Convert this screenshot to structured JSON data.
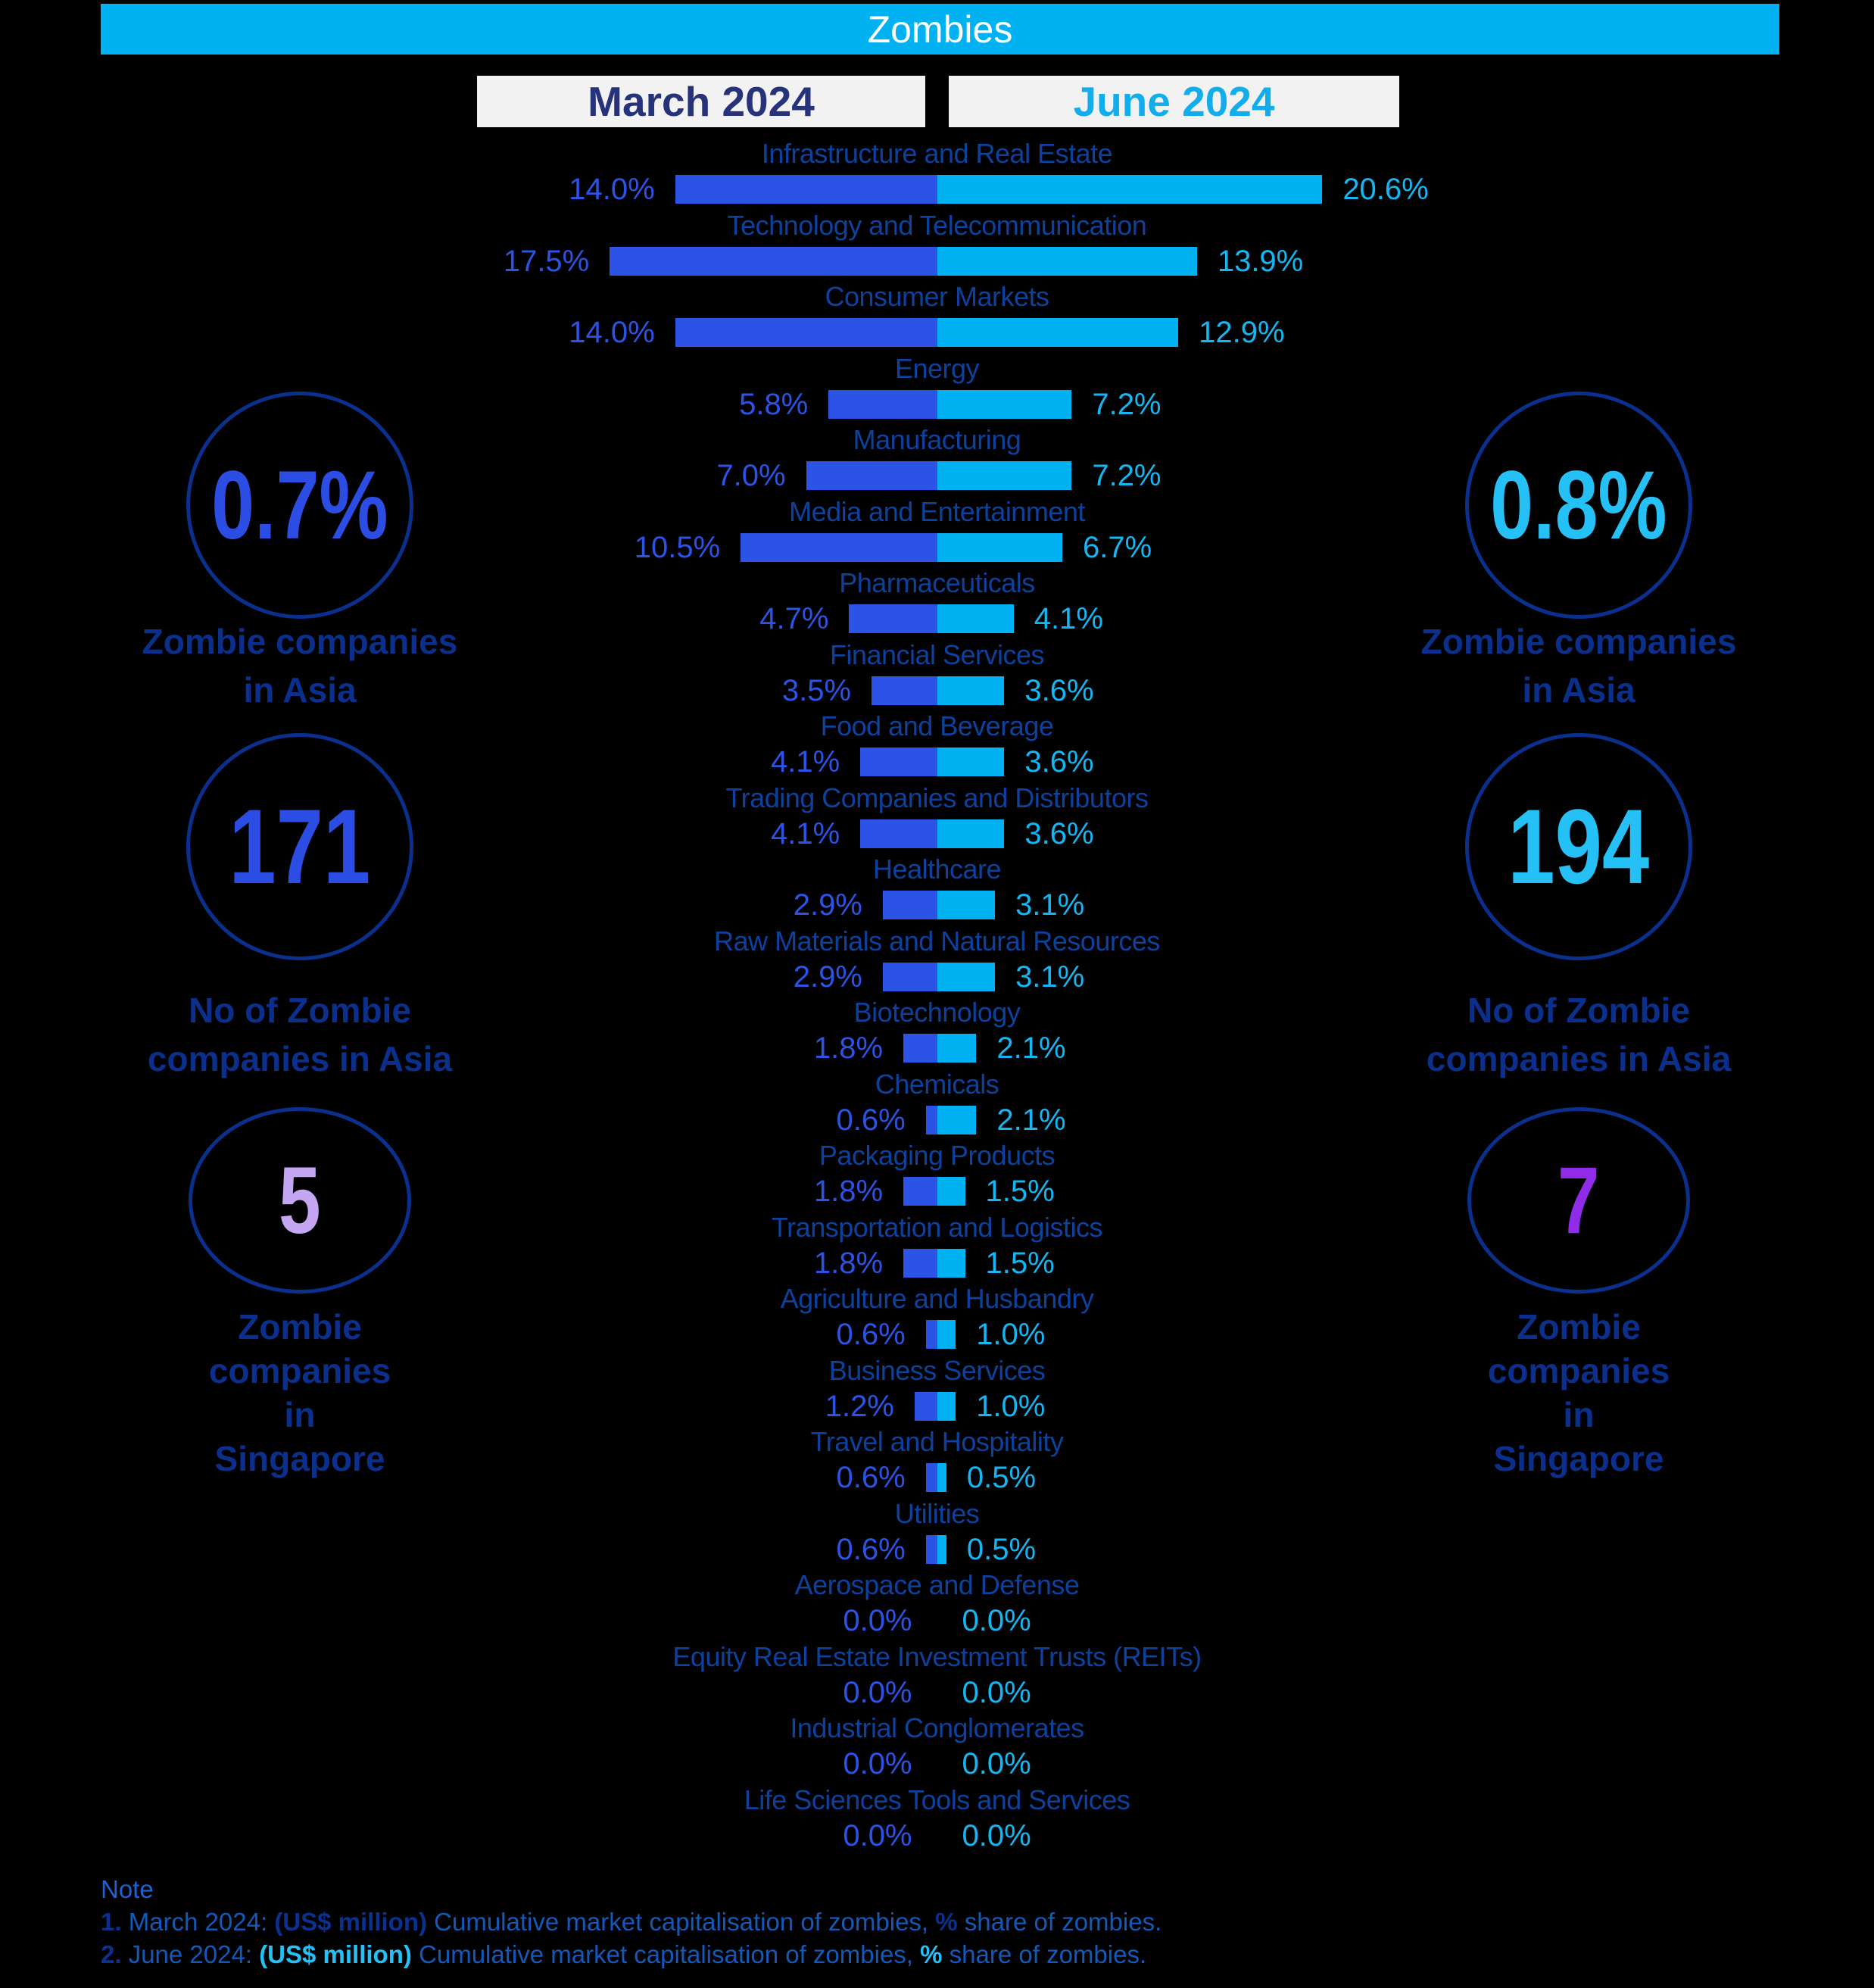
{
  "banner": {
    "title": "Zombies"
  },
  "legend": {
    "march": "March 2024",
    "june": "June 2024"
  },
  "colors": {
    "banner": "#00B2F1",
    "march_bar": "#2B53E6",
    "june_bar": "#00B2F1",
    "category_label": "#0D419E",
    "caption_navy": "#0A2F8C",
    "num_blue": "#2C4DE3",
    "num_cyan": "#25C1F6",
    "num_lavender": "#C4A6F3",
    "num_purple": "#8F2BE9",
    "note_heading": "#1E62D2",
    "note_blue": "#1459B8",
    "note_navy": "#0B3190",
    "note_cyan": "#25C1F6"
  },
  "chart_data": {
    "type": "bar",
    "layout": "butterfly",
    "unit": "%",
    "legend_entries": [
      "March 2024",
      "June 2024"
    ],
    "categories": [
      "Infrastructure and Real Estate",
      "Technology and Telecommunication",
      "Consumer Markets",
      "Energy",
      "Manufacturing",
      "Media and Entertainment",
      "Pharmaceuticals",
      "Financial Services",
      "Food and Beverage",
      "Trading Companies and Distributors",
      "Healthcare",
      "Raw Materials and Natural Resources",
      "Biotechnology",
      "Chemicals",
      "Packaging Products",
      "Transportation and Logistics",
      "Agriculture and Husbandry",
      "Business Services",
      "Travel and Hospitality",
      "Utilities",
      "Aerospace and Defense",
      "Equity Real Estate Investment Trusts (REITs)",
      "Industrial Conglomerates",
      "Life Sciences Tools and Services"
    ],
    "series": [
      {
        "name": "March 2024",
        "values": [
          14.0,
          17.5,
          14.0,
          5.8,
          7.0,
          10.5,
          4.7,
          3.5,
          4.1,
          4.1,
          2.9,
          2.9,
          1.8,
          0.6,
          1.8,
          1.8,
          0.6,
          1.2,
          0.6,
          0.6,
          0.0,
          0.0,
          0.0,
          0.0
        ]
      },
      {
        "name": "June 2024",
        "values": [
          20.6,
          13.9,
          12.9,
          7.2,
          7.2,
          6.7,
          4.1,
          3.6,
          3.6,
          3.6,
          3.1,
          3.1,
          2.1,
          2.1,
          1.5,
          1.5,
          1.0,
          1.0,
          0.5,
          0.5,
          0.0,
          0.0,
          0.0,
          0.0
        ]
      }
    ],
    "value_label_format": "0.0%"
  },
  "stats": {
    "left": [
      {
        "value": "0.7%",
        "caption": "Zombie companies\nin Asia"
      },
      {
        "value": "171",
        "caption": "No of Zombie\ncompanies in Asia"
      },
      {
        "value": "5",
        "caption": "Zombie\ncompanies\nin\nSingapore"
      }
    ],
    "right": [
      {
        "value": "0.8%",
        "caption": "Zombie companies\nin Asia"
      },
      {
        "value": "194",
        "caption": "No of Zombie\ncompanies in Asia"
      },
      {
        "value": "7",
        "caption": "Zombie\ncompanies\nin\nSingapore"
      }
    ]
  },
  "note": {
    "title": "Note",
    "lines": [
      [
        {
          "t": "1. ",
          "b": true,
          "c": "note_navy"
        },
        {
          "t": "March 2024: ",
          "c": "note_blue"
        },
        {
          "t": "(US$ million) ",
          "b": true,
          "c": "note_navy"
        },
        {
          "t": "Cumulative market capitalisation of zombies, ",
          "c": "note_blue"
        },
        {
          "t": "%",
          "b": true,
          "c": "note_navy"
        },
        {
          "t": " share of zombies.",
          "c": "note_blue"
        }
      ],
      [
        {
          "t": "2. ",
          "b": true,
          "c": "note_navy"
        },
        {
          "t": "June 2024: ",
          "c": "note_blue"
        },
        {
          "t": "(US$ million) ",
          "b": true,
          "c": "note_cyan"
        },
        {
          "t": "Cumulative market capitalisation of zombies, ",
          "c": "note_blue"
        },
        {
          "t": "%",
          "b": true,
          "c": "note_cyan"
        },
        {
          "t": " share of zombies.",
          "c": "note_blue"
        }
      ]
    ]
  }
}
